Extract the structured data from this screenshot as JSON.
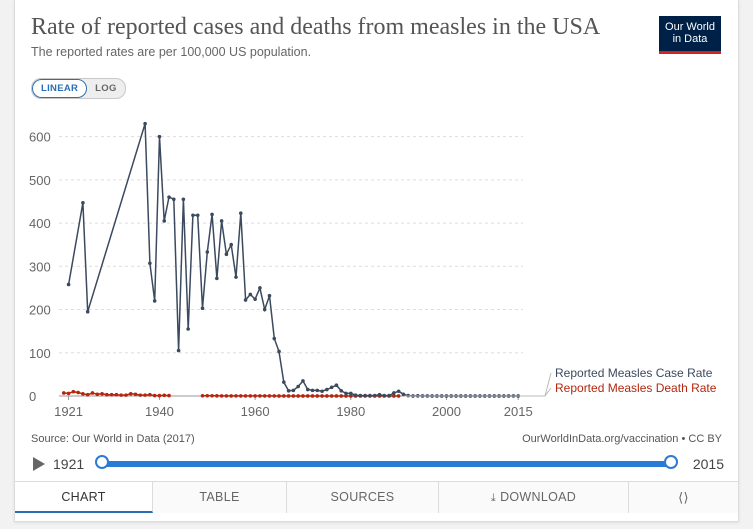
{
  "header": {
    "title": "Rate of reported cases and deaths from measles in the USA",
    "subtitle": "The reported rates are per 100,000 US population.",
    "logo_line1": "Our World",
    "logo_line2": "in Data"
  },
  "scale_toggle": {
    "linear_label": "LINEAR",
    "log_label": "LOG",
    "selected": "LINEAR"
  },
  "footer": {
    "source": "Source: Our World in Data (2017)",
    "license": "OurWorldInData.org/vaccination • CC BY"
  },
  "timeline": {
    "start_label": "1921",
    "end_label": "2015",
    "start_value": 1921,
    "end_value": 2015
  },
  "tabs": {
    "chart": "CHART",
    "table": "TABLE",
    "sources": "SOURCES",
    "download": "DOWNLOAD"
  },
  "colors": {
    "case_series": "#3b4a5e",
    "death_series": "#b5260e",
    "accent": "#2a7bd6"
  },
  "chart_data": {
    "type": "line",
    "title": "Rate of reported cases and deaths from measles in the USA",
    "xlabel": "",
    "ylabel": "",
    "xlim": [
      1919,
      2016
    ],
    "ylim": [
      0,
      650
    ],
    "x_ticks": [
      1921,
      1940,
      1960,
      1980,
      2000,
      2015
    ],
    "y_ticks": [
      0,
      100,
      200,
      300,
      400,
      500,
      600
    ],
    "grid": "horizontal dashed",
    "legend": "right, at line ends",
    "series": [
      {
        "name": "Reported Measles Case Rate",
        "color": "#3b4a5e",
        "points": [
          [
            1921,
            258
          ],
          [
            1924,
            447
          ],
          [
            1925,
            195
          ],
          [
            1937,
            630
          ],
          [
            1938,
            307
          ],
          [
            1939,
            220
          ],
          [
            1940,
            600
          ],
          [
            1941,
            405
          ],
          [
            1942,
            460
          ],
          [
            1943,
            455
          ],
          [
            1944,
            105
          ],
          [
            1945,
            455
          ],
          [
            1946,
            155
          ],
          [
            1947,
            418
          ],
          [
            1948,
            418
          ],
          [
            1949,
            203
          ],
          [
            1950,
            333
          ],
          [
            1951,
            420
          ],
          [
            1952,
            272
          ],
          [
            1953,
            405
          ],
          [
            1954,
            328
          ],
          [
            1955,
            350
          ],
          [
            1956,
            275
          ],
          [
            1957,
            423
          ],
          [
            1958,
            222
          ],
          [
            1959,
            235
          ],
          [
            1960,
            224
          ],
          [
            1961,
            250
          ],
          [
            1962,
            200
          ],
          [
            1963,
            232
          ],
          [
            1964,
            133
          ],
          [
            1965,
            103
          ],
          [
            1966,
            32
          ],
          [
            1967,
            12
          ],
          [
            1968,
            13
          ],
          [
            1969,
            22
          ],
          [
            1970,
            35
          ],
          [
            1971,
            15
          ],
          [
            1972,
            13
          ],
          [
            1973,
            13
          ],
          [
            1974,
            11
          ],
          [
            1975,
            15
          ],
          [
            1976,
            20
          ],
          [
            1977,
            25
          ],
          [
            1978,
            12
          ],
          [
            1979,
            6
          ],
          [
            1980,
            6
          ],
          [
            1981,
            2
          ],
          [
            1982,
            1
          ],
          [
            1983,
            1
          ],
          [
            1984,
            1
          ],
          [
            1985,
            1
          ],
          [
            1986,
            3
          ],
          [
            1987,
            1
          ],
          [
            1988,
            1
          ],
          [
            1989,
            7
          ],
          [
            1990,
            11
          ],
          [
            1991,
            4
          ],
          [
            1992,
            1
          ],
          [
            1993,
            0.1
          ],
          [
            1994,
            0.4
          ],
          [
            1995,
            0.1
          ],
          [
            1996,
            0.2
          ],
          [
            1997,
            0.1
          ],
          [
            1998,
            0.1
          ],
          [
            1999,
            0.1
          ],
          [
            2000,
            0.1
          ],
          [
            2001,
            0.1
          ],
          [
            2002,
            0.1
          ],
          [
            2003,
            0.1
          ],
          [
            2004,
            0.1
          ],
          [
            2005,
            0.1
          ],
          [
            2006,
            0.1
          ],
          [
            2007,
            0.1
          ],
          [
            2008,
            0.1
          ],
          [
            2009,
            0.1
          ],
          [
            2010,
            0.1
          ],
          [
            2011,
            0.1
          ],
          [
            2012,
            0.1
          ],
          [
            2013,
            0.1
          ],
          [
            2014,
            0.2
          ],
          [
            2015,
            0.1
          ]
        ]
      },
      {
        "name": "Reported Measles Death Rate",
        "color": "#b5260e",
        "points": [
          [
            1920,
            7
          ],
          [
            1921,
            6
          ],
          [
            1922,
            10
          ],
          [
            1923,
            8
          ],
          [
            1924,
            5
          ],
          [
            1925,
            3
          ],
          [
            1926,
            7
          ],
          [
            1927,
            4
          ],
          [
            1928,
            5
          ],
          [
            1929,
            3
          ],
          [
            1930,
            3
          ],
          [
            1931,
            3
          ],
          [
            1932,
            2
          ],
          [
            1933,
            2
          ],
          [
            1934,
            5
          ],
          [
            1935,
            4
          ],
          [
            1936,
            2
          ],
          [
            1937,
            2
          ],
          [
            1938,
            3
          ],
          [
            1939,
            1
          ],
          [
            1940,
            1
          ],
          [
            1941,
            1.5
          ],
          [
            1942,
            1
          ],
          [
            1949,
            0.5
          ],
          [
            1950,
            0.5
          ],
          [
            1951,
            0.5
          ],
          [
            1952,
            0.4
          ],
          [
            1953,
            0.3
          ],
          [
            1954,
            0.3
          ],
          [
            1955,
            0.2
          ],
          [
            1956,
            0.3
          ],
          [
            1957,
            0.2
          ],
          [
            1958,
            0.3
          ],
          [
            1959,
            0.2
          ],
          [
            1960,
            0.2
          ],
          [
            1961,
            0.2
          ],
          [
            1962,
            0.2
          ],
          [
            1963,
            0.2
          ],
          [
            1964,
            0.2
          ],
          [
            1965,
            0.1
          ],
          [
            1966,
            0.1
          ],
          [
            1967,
            0.1
          ],
          [
            1968,
            0.1
          ],
          [
            1969,
            0.1
          ],
          [
            1970,
            0.1
          ],
          [
            1971,
            0.1
          ],
          [
            1972,
            0.1
          ],
          [
            1973,
            0.1
          ],
          [
            1974,
            0.1
          ],
          [
            1975,
            0.1
          ],
          [
            1976,
            0.1
          ],
          [
            1977,
            0.1
          ],
          [
            1978,
            0.1
          ],
          [
            1979,
            0.1
          ],
          [
            1980,
            0.1
          ],
          [
            1981,
            0.1
          ],
          [
            1982,
            0.1
          ],
          [
            1983,
            0.1
          ],
          [
            1984,
            0.1
          ],
          [
            1985,
            0.1
          ],
          [
            1986,
            0.1
          ],
          [
            1987,
            0.1
          ],
          [
            1988,
            0.1
          ],
          [
            1989,
            0.1
          ],
          [
            1990,
            0.1
          ]
        ]
      }
    ]
  }
}
